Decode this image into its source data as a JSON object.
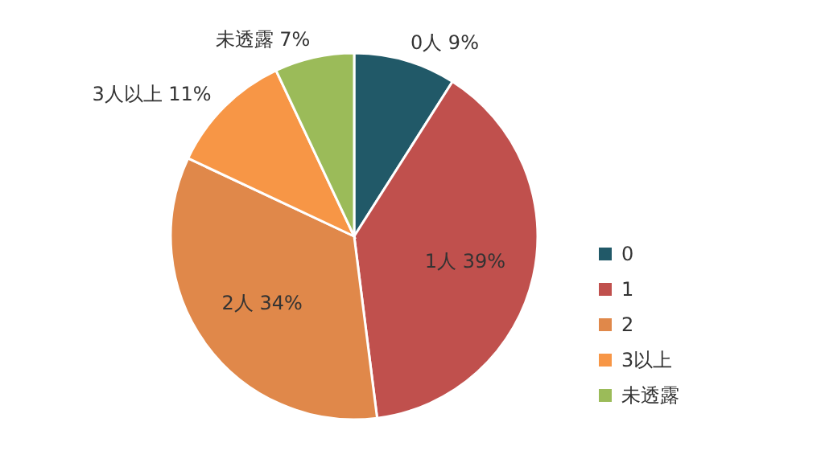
{
  "chart_data": {
    "type": "pie",
    "categories": [
      "0",
      "1",
      "2",
      "3以上",
      "未透露"
    ],
    "values": [
      9,
      39,
      34,
      11,
      7
    ],
    "value_labels": [
      "0人 9%",
      "1人 39%",
      "2人 34%",
      "3人以上 11%",
      "未透露 7%"
    ],
    "colors": [
      "#215968",
      "#c0504d",
      "#e0884a",
      "#f79646",
      "#9bbb59"
    ],
    "legend": "right"
  }
}
